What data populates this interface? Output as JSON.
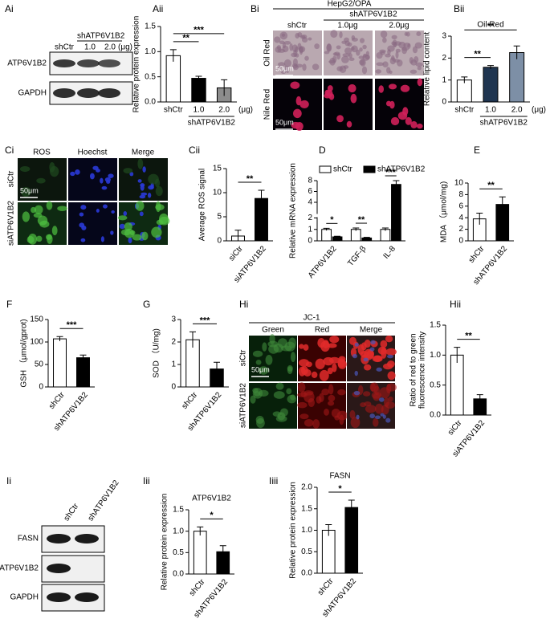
{
  "figure": {
    "ai": {
      "label": "Ai",
      "group": "shATP6V1B2",
      "lanes": [
        "shCtr",
        "1.0",
        "2.0"
      ],
      "unit": "(μg)",
      "rows": [
        "ATP6V1B2",
        "GAPDH"
      ]
    },
    "bi": {
      "label": "Bi",
      "title": "HepG2/OPA",
      "group": "shATP6V1B2",
      "columns": [
        "shCtr",
        "1.0μg",
        "2.0μg"
      ],
      "rows": [
        "Oil Red",
        "Nile Red"
      ],
      "scale": "50μm"
    },
    "ci": {
      "label": "Ci",
      "columns": [
        "ROS",
        "Hoechst",
        "Merge"
      ],
      "rows": [
        "siCtr",
        "siATP6V1B2"
      ],
      "scale": "50μm"
    },
    "hi": {
      "label": "Hi",
      "title": "JC-1",
      "columns": [
        "Green",
        "Red",
        "Merge"
      ],
      "rows": [
        "siCtr",
        "siATP6V1B2"
      ],
      "scale": "50μm"
    },
    "ii": {
      "label": "Ii",
      "lanes": [
        "shCtr",
        "shATP6V1B2"
      ],
      "rows": [
        "FASN",
        "ATP6V1B2",
        "GAPDH"
      ]
    }
  },
  "chart_data": [
    {
      "type": "bar",
      "panel": "Aii",
      "ylabel": "Relative protein expression",
      "categories": [
        "shCtr",
        "1.0",
        "2.0"
      ],
      "series": [
        {
          "values": [
            0.92,
            0.47,
            0.28
          ],
          "errors": [
            0.12,
            0.04,
            0.16
          ],
          "colors": [
            "#ffffff",
            "#000000",
            "#8c8c8c"
          ]
        }
      ],
      "ylim": [
        0,
        1.5
      ],
      "yticks": [
        {
          "value": 0,
          "label": "0.0"
        },
        0.5,
        {
          "value": 1,
          "label": "1.0"
        },
        1.5
      ],
      "significance": [
        "**",
        "***"
      ],
      "group_label": "shATP6V1B2",
      "unit": "(μg)"
    },
    {
      "type": "bar",
      "panel": "Bii",
      "title": "Oil Red",
      "ylabel": "Relative lipid content",
      "categories": [
        "shCtr",
        "1.0",
        "2.0"
      ],
      "series": [
        {
          "values": [
            1.0,
            1.58,
            2.25
          ],
          "errors": [
            0.14,
            0.08,
            0.3
          ],
          "colors": [
            "#ffffff",
            "#1f3550",
            "#7d8fa6"
          ]
        }
      ],
      "ylim": [
        0,
        3
      ],
      "yticks": [
        0,
        1,
        2,
        3
      ],
      "significance": [
        "**",
        "**"
      ],
      "group_label": "shATP6V1B2",
      "unit": "(μg)"
    },
    {
      "type": "bar",
      "panel": "Cii",
      "ylabel": "Average ROS signal",
      "categories": [
        "siCtr",
        "siATP6V1B2"
      ],
      "series": [
        {
          "values": [
            1.0,
            8.8
          ],
          "errors": [
            1.2,
            1.7
          ],
          "colors": [
            "#ffffff",
            "#000000"
          ]
        }
      ],
      "ylim": [
        0,
        15
      ],
      "yticks": [
        0,
        5,
        10,
        15
      ],
      "significance": [
        "**"
      ],
      "rotate_labels": true
    },
    {
      "type": "bar",
      "panel": "D",
      "ylabel": "Relative mRNA expression",
      "categories": [
        "ATP6V1B2",
        "TGF-β",
        "IL-8"
      ],
      "series": [
        {
          "name": "shCtr",
          "color": "#ffffff",
          "values": [
            1.0,
            1.0,
            1.0
          ],
          "errors": [
            0.1,
            0.12,
            0.12
          ]
        },
        {
          "name": "shATP6V1B2",
          "color": "#000000",
          "values": [
            0.35,
            0.25,
            7.3
          ],
          "errors": [
            0.05,
            0.06,
            0.7
          ]
        }
      ],
      "ylim": [
        0,
        8
      ],
      "axis_break": 2,
      "yticks": [
        0,
        1,
        2,
        4,
        6,
        8
      ],
      "significance": [
        "*",
        "**",
        "***"
      ],
      "rotate_labels": true
    },
    {
      "type": "bar",
      "panel": "E",
      "ylabel": "MDA （μmol/mg)",
      "categories": [
        "shCtr",
        "shATP6V1B2"
      ],
      "series": [
        {
          "values": [
            3.8,
            6.3
          ],
          "errors": [
            1.0,
            1.3
          ],
          "colors": [
            "#ffffff",
            "#000000"
          ]
        }
      ],
      "ylim": [
        0,
        10
      ],
      "yticks": [
        0,
        2,
        4,
        6,
        8,
        10
      ],
      "significance": [
        "**"
      ],
      "rotate_labels": true
    },
    {
      "type": "bar",
      "panel": "F",
      "ylabel": "GSH （μmol/gprot)",
      "categories": [
        "shCtr",
        "shATP6V1B2"
      ],
      "series": [
        {
          "values": [
            107,
            65
          ],
          "errors": [
            5,
            6
          ],
          "colors": [
            "#ffffff",
            "#000000"
          ]
        }
      ],
      "ylim": [
        0,
        150
      ],
      "yticks": [
        0,
        50,
        100,
        150
      ],
      "significance": [
        "***"
      ],
      "rotate_labels": true
    },
    {
      "type": "bar",
      "panel": "G",
      "ylabel": "SOD （U/mg)",
      "categories": [
        "shCtr",
        "shATP6V1B2"
      ],
      "series": [
        {
          "values": [
            2.1,
            0.8
          ],
          "errors": [
            0.35,
            0.3
          ],
          "colors": [
            "#ffffff",
            "#000000"
          ]
        }
      ],
      "ylim": [
        0,
        3
      ],
      "yticks": [
        0,
        1,
        2,
        3
      ],
      "significance": [
        "***"
      ],
      "rotate_labels": true
    },
    {
      "type": "bar",
      "panel": "Hii",
      "ylabel": [
        "Ratio of red to green",
        "fluorescence intensity"
      ],
      "categories": [
        "siCtr",
        "siATP6V1B2"
      ],
      "series": [
        {
          "values": [
            1.0,
            0.27
          ],
          "errors": [
            0.13,
            0.07
          ],
          "colors": [
            "#ffffff",
            "#000000"
          ]
        }
      ],
      "ylim": [
        0,
        1.5
      ],
      "yticks": [
        {
          "value": 0,
          "label": "0.0"
        },
        0.5,
        {
          "value": 1,
          "label": "1.0"
        },
        1.5
      ],
      "significance": [
        "**"
      ],
      "rotate_labels": true
    },
    {
      "type": "bar",
      "panel": "Iii",
      "title": "ATP6V1B2",
      "ylabel": "Relative protein expression",
      "categories": [
        "shCtr",
        "shATP6V1B2"
      ],
      "series": [
        {
          "values": [
            1.0,
            0.52
          ],
          "errors": [
            0.1,
            0.14
          ],
          "colors": [
            "#ffffff",
            "#000000"
          ]
        }
      ],
      "ylim": [
        0,
        1.5
      ],
      "yticks": [
        {
          "value": 0,
          "label": "0.0"
        },
        0.5,
        {
          "value": 1,
          "label": "1.0"
        },
        1.5
      ],
      "significance": [
        "*"
      ],
      "rotate_labels": true
    },
    {
      "type": "bar",
      "panel": "Iiii",
      "title": "FASN",
      "ylabel": "Relative protein expression",
      "categories": [
        "shCtr",
        "shATP6V1B2"
      ],
      "series": [
        {
          "values": [
            1.0,
            1.53
          ],
          "errors": [
            0.13,
            0.17
          ],
          "colors": [
            "#ffffff",
            "#000000"
          ]
        }
      ],
      "ylim": [
        0,
        2
      ],
      "yticks": [
        {
          "value": 0,
          "label": "0.0"
        },
        0.5,
        {
          "value": 1,
          "label": "1.0"
        },
        1.5,
        {
          "value": 2,
          "label": "2.0"
        }
      ],
      "significance": [
        "*"
      ],
      "rotate_labels": true
    }
  ]
}
